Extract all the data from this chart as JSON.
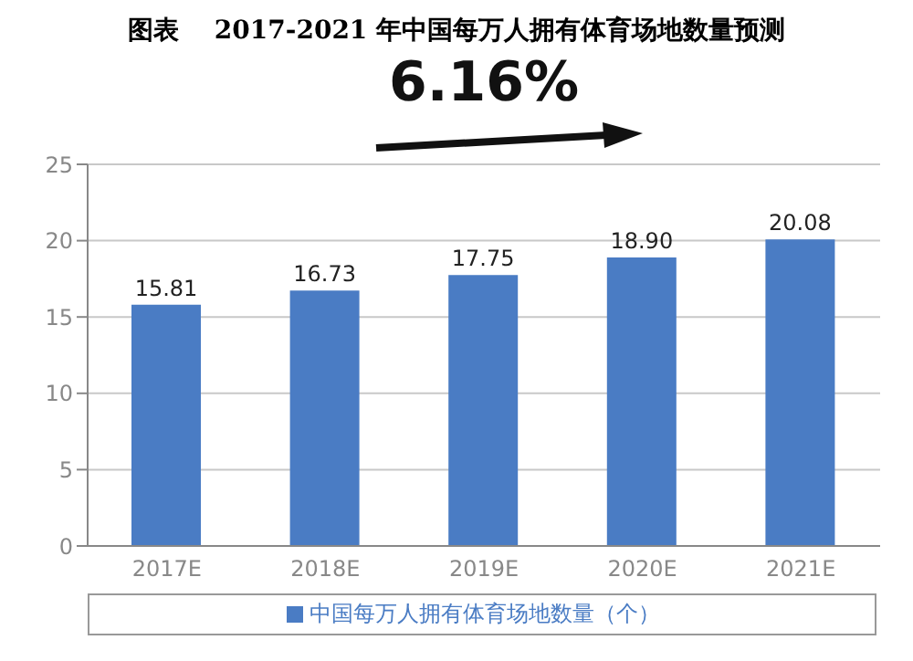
{
  "chart_data": {
    "type": "bar",
    "title": "图表    2017-2021 年中国每万人拥有体育场地数量预测",
    "categories": [
      "2017E",
      "2018E",
      "2019E",
      "2020E",
      "2021E"
    ],
    "series": [
      {
        "name": "中国每万人拥有体育场地数量（个）",
        "color": "#4a7cc4",
        "values": [
          15.81,
          16.73,
          17.75,
          18.9,
          20.08
        ],
        "value_labels": [
          "15.81",
          "16.73",
          "17.75",
          "18.90",
          "20.08"
        ]
      }
    ],
    "ylim": [
      0,
      25
    ],
    "yticks": [
      0,
      5,
      10,
      15,
      20,
      25
    ],
    "grid": "y",
    "legend": "bottom",
    "annotations": [
      "6.16%"
    ]
  }
}
